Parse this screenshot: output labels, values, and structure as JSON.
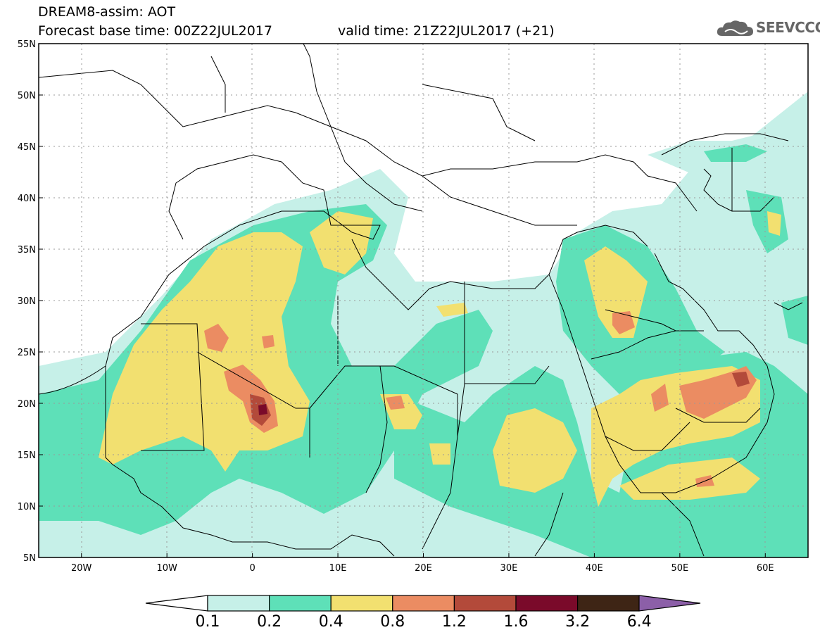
{
  "header": {
    "line1": "DREAM8-assim: AOT",
    "line2": "Forecast base time: 00Z22JUL2017",
    "line3": "valid time: 21Z22JUL2017 (+21)",
    "logo_text": "SEEVCCC"
  },
  "map": {
    "lon_range": [
      -25,
      65
    ],
    "lat_range": [
      5,
      55
    ],
    "lat_labels": [
      "55N",
      "50N",
      "45N",
      "40N",
      "35N",
      "30N",
      "25N",
      "20N",
      "15N",
      "10N",
      "5N"
    ],
    "lat_values": [
      55,
      50,
      45,
      40,
      35,
      30,
      25,
      20,
      15,
      10,
      5
    ],
    "lon_labels": [
      "20W",
      "10W",
      "0",
      "10E",
      "20E",
      "30E",
      "40E",
      "50E",
      "60E"
    ],
    "lon_values": [
      -20,
      -10,
      0,
      10,
      20,
      30,
      40,
      50,
      60
    ]
  },
  "colorbar": {
    "labels": [
      "0.1",
      "0.2",
      "0.4",
      "0.8",
      "1.2",
      "1.6",
      "3.2",
      "6.4"
    ],
    "colors": [
      "#c6f0e8",
      "#5ee0b8",
      "#f2e070",
      "#eb8c62",
      "#b34a3a",
      "#7a0a2a",
      "#3e2515",
      "#8c5fa8"
    ]
  }
}
